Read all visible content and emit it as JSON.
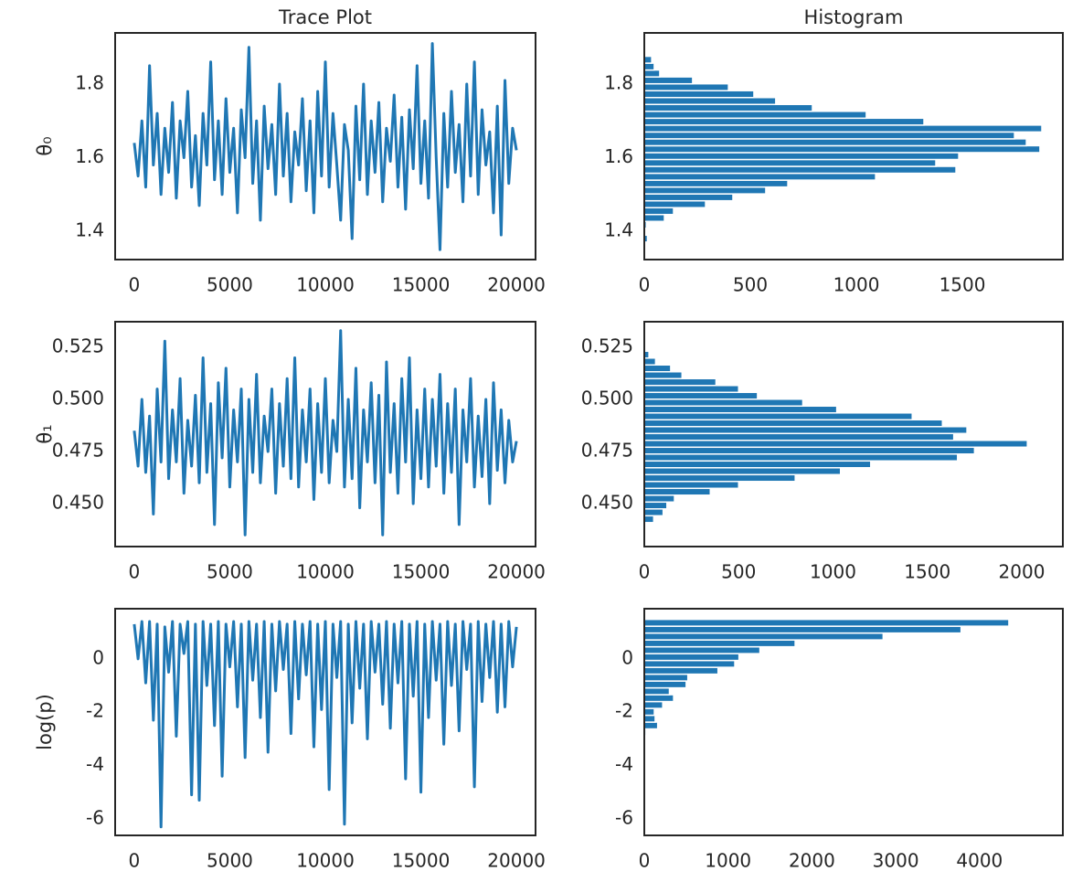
{
  "chart_data": [
    {
      "type": "line",
      "title": "Trace Plot",
      "ylabel": "θ₀",
      "color": "#1f77b4",
      "x": [
        0,
        200,
        400,
        600,
        800,
        1000,
        1200,
        1400,
        1600,
        1800,
        2000,
        2200,
        2400,
        2600,
        2800,
        3000,
        3200,
        3400,
        3600,
        3800,
        4000,
        4200,
        4400,
        4600,
        4800,
        5000,
        5200,
        5400,
        5600,
        5800,
        6000,
        6200,
        6400,
        6600,
        6800,
        7000,
        7200,
        7400,
        7600,
        7800,
        8000,
        8200,
        8400,
        8600,
        8800,
        9000,
        9200,
        9400,
        9600,
        9800,
        10000,
        10200,
        10400,
        10600,
        10800,
        11000,
        11200,
        11400,
        11600,
        11800,
        12000,
        12200,
        12400,
        12600,
        12800,
        13000,
        13200,
        13400,
        13600,
        13800,
        14000,
        14200,
        14400,
        14600,
        14800,
        15000,
        15200,
        15400,
        15600,
        15800,
        16000,
        16200,
        16400,
        16600,
        16800,
        17000,
        17200,
        17400,
        17600,
        17800,
        18000,
        18200,
        18400,
        18600,
        18800,
        19000,
        19200,
        19400,
        19600,
        19800,
        20000
      ],
      "values": [
        1.64,
        1.55,
        1.7,
        1.52,
        1.85,
        1.58,
        1.72,
        1.5,
        1.68,
        1.56,
        1.75,
        1.49,
        1.7,
        1.6,
        1.78,
        1.52,
        1.66,
        1.47,
        1.72,
        1.58,
        1.86,
        1.54,
        1.7,
        1.5,
        1.76,
        1.56,
        1.68,
        1.45,
        1.73,
        1.6,
        1.9,
        1.53,
        1.7,
        1.43,
        1.74,
        1.57,
        1.69,
        1.5,
        1.8,
        1.55,
        1.72,
        1.48,
        1.67,
        1.58,
        1.76,
        1.51,
        1.7,
        1.45,
        1.78,
        1.55,
        1.86,
        1.52,
        1.72,
        1.58,
        1.43,
        1.69,
        1.62,
        1.38,
        1.74,
        1.54,
        1.8,
        1.5,
        1.7,
        1.56,
        1.75,
        1.48,
        1.68,
        1.59,
        1.77,
        1.52,
        1.71,
        1.46,
        1.73,
        1.57,
        1.85,
        1.53,
        1.7,
        1.49,
        1.91,
        1.6,
        1.35,
        1.72,
        1.52,
        1.78,
        1.56,
        1.69,
        1.48,
        1.8,
        1.55,
        1.86,
        1.5,
        1.73,
        1.58,
        1.67,
        1.45,
        1.74,
        1.39,
        1.81,
        1.53,
        1.68,
        1.62
      ],
      "xlim": [
        -1000,
        21000
      ],
      "xticks": [
        0,
        5000,
        10000,
        15000,
        20000
      ],
      "ylim": [
        1.323,
        1.939
      ],
      "yticks": [
        1.4,
        1.6,
        1.8
      ]
    },
    {
      "type": "histogram",
      "title": "Histogram",
      "color": "#1f77b4",
      "bins": [
        1.3706,
        1.3893,
        1.408,
        1.4267,
        1.4454,
        1.4641,
        1.4828,
        1.5015,
        1.5202,
        1.5389,
        1.5576,
        1.5763,
        1.595,
        1.6137,
        1.6324,
        1.6511,
        1.6698,
        1.6885,
        1.7072,
        1.7259,
        1.7446,
        1.7633,
        1.782,
        1.8007,
        1.8194,
        1.8381,
        1.8568,
        1.8755
      ],
      "values": [
        15,
        0,
        10,
        95,
        138,
        289,
        418,
        573,
        677,
        1091,
        1470,
        1375,
        1483,
        1866,
        1802,
        1746,
        1875,
        1319,
        1047,
        793,
        620,
        517,
        397,
        228,
        73,
        47,
        35
      ],
      "xlim": [
        0,
        1974
      ],
      "xticks": [
        0,
        500,
        1000,
        1500
      ],
      "ylim": [
        1.323,
        1.939
      ],
      "yticks": [
        1.4,
        1.6,
        1.8
      ]
    },
    {
      "type": "line",
      "ylabel": "θ₁",
      "color": "#1f77b4",
      "x": [
        0,
        200,
        400,
        600,
        800,
        1000,
        1200,
        1400,
        1600,
        1800,
        2000,
        2200,
        2400,
        2600,
        2800,
        3000,
        3200,
        3400,
        3600,
        3800,
        4000,
        4200,
        4400,
        4600,
        4800,
        5000,
        5200,
        5400,
        5600,
        5800,
        6000,
        6200,
        6400,
        6600,
        6800,
        7000,
        7200,
        7400,
        7600,
        7800,
        8000,
        8200,
        8400,
        8600,
        8800,
        9000,
        9200,
        9400,
        9600,
        9800,
        10000,
        10200,
        10400,
        10600,
        10800,
        11000,
        11200,
        11400,
        11600,
        11800,
        12000,
        12200,
        12400,
        12600,
        12800,
        13000,
        13200,
        13400,
        13600,
        13800,
        14000,
        14200,
        14400,
        14600,
        14800,
        15000,
        15200,
        15400,
        15600,
        15800,
        16000,
        16200,
        16400,
        16600,
        16800,
        17000,
        17200,
        17400,
        17600,
        17800,
        18000,
        18200,
        18400,
        18600,
        18800,
        19000,
        19200,
        19400,
        19600,
        19800,
        20000
      ],
      "values": [
        0.485,
        0.468,
        0.5,
        0.465,
        0.492,
        0.445,
        0.505,
        0.47,
        0.528,
        0.462,
        0.495,
        0.47,
        0.51,
        0.455,
        0.49,
        0.468,
        0.502,
        0.46,
        0.52,
        0.465,
        0.498,
        0.44,
        0.508,
        0.472,
        0.515,
        0.458,
        0.495,
        0.47,
        0.505,
        0.435,
        0.5,
        0.465,
        0.512,
        0.46,
        0.492,
        0.475,
        0.505,
        0.455,
        0.498,
        0.468,
        0.51,
        0.462,
        0.52,
        0.458,
        0.495,
        0.47,
        0.505,
        0.452,
        0.498,
        0.465,
        0.51,
        0.46,
        0.49,
        0.475,
        0.533,
        0.458,
        0.5,
        0.462,
        0.515,
        0.448,
        0.495,
        0.47,
        0.508,
        0.46,
        0.502,
        0.435,
        0.518,
        0.465,
        0.498,
        0.455,
        0.51,
        0.47,
        0.52,
        0.45,
        0.495,
        0.462,
        0.505,
        0.458,
        0.5,
        0.468,
        0.512,
        0.455,
        0.498,
        0.465,
        0.505,
        0.44,
        0.495,
        0.47,
        0.51,
        0.458,
        0.492,
        0.463,
        0.5,
        0.45,
        0.508,
        0.466,
        0.495,
        0.46,
        0.49,
        0.47,
        0.48
      ],
      "xlim": [
        -1000,
        21000
      ],
      "xticks": [
        0,
        5000,
        10000,
        15000,
        20000
      ],
      "ylim": [
        0.4294,
        0.5373
      ],
      "yticks": [
        {
          "value": 0.45,
          "label": "0.450"
        },
        {
          "value": 0.475,
          "label": "0.475"
        },
        {
          "value": 0.5,
          "label": "0.500"
        },
        {
          "value": 0.525,
          "label": "0.525"
        }
      ]
    },
    {
      "type": "histogram",
      "color": "#1f77b4",
      "bins": [
        0.4409,
        0.44419,
        0.44748,
        0.45077,
        0.45406,
        0.45735,
        0.46064,
        0.46393,
        0.46722,
        0.47051,
        0.4738,
        0.47709,
        0.48038,
        0.48367,
        0.48696,
        0.49025,
        0.49354,
        0.49683,
        0.50012,
        0.50341,
        0.5067,
        0.50999,
        0.51328,
        0.51657,
        0.51986,
        0.52315
      ],
      "values": [
        50,
        100,
        120,
        160,
        350,
        500,
        800,
        1040,
        1200,
        1660,
        1750,
        2030,
        1640,
        1710,
        1580,
        1420,
        1020,
        840,
        600,
        500,
        380,
        200,
        140,
        60,
        25
      ],
      "xlim": [
        0,
        2218
      ],
      "xticks": [
        0,
        500,
        1000,
        1500,
        2000
      ],
      "ylim": [
        0.4294,
        0.5373
      ],
      "yticks": [
        {
          "value": 0.45,
          "label": "0.450"
        },
        {
          "value": 0.475,
          "label": "0.475"
        },
        {
          "value": 0.5,
          "label": "0.500"
        },
        {
          "value": 0.525,
          "label": "0.525"
        }
      ]
    },
    {
      "type": "line",
      "ylabel": "log(p)",
      "color": "#1f77b4",
      "x": [
        0,
        200,
        400,
        600,
        800,
        1000,
        1200,
        1400,
        1600,
        1800,
        2000,
        2200,
        2400,
        2600,
        2800,
        3000,
        3200,
        3400,
        3600,
        3800,
        4000,
        4200,
        4400,
        4600,
        4800,
        5000,
        5200,
        5400,
        5600,
        5800,
        6000,
        6200,
        6400,
        6600,
        6800,
        7000,
        7200,
        7400,
        7600,
        7800,
        8000,
        8200,
        8400,
        8600,
        8800,
        9000,
        9200,
        9400,
        9600,
        9800,
        10000,
        10200,
        10400,
        10600,
        10800,
        11000,
        11200,
        11400,
        11600,
        11800,
        12000,
        12200,
        12400,
        12600,
        12800,
        13000,
        13200,
        13400,
        13600,
        13800,
        14000,
        14200,
        14400,
        14600,
        14800,
        15000,
        15200,
        15400,
        15600,
        15800,
        16000,
        16200,
        16400,
        16600,
        16800,
        17000,
        17200,
        17400,
        17600,
        17800,
        18000,
        18200,
        18400,
        18600,
        18800,
        19000,
        19200,
        19400,
        19600,
        19800,
        20000
      ],
      "values": [
        1.3,
        0.0,
        1.4,
        -0.9,
        1.4,
        -2.3,
        1.3,
        -6.3,
        1.2,
        -0.5,
        1.4,
        -2.9,
        1.3,
        0.2,
        1.4,
        -5.1,
        1.3,
        -5.3,
        1.4,
        -1.0,
        1.3,
        -2.5,
        1.4,
        -4.4,
        1.3,
        -0.3,
        1.4,
        -1.8,
        1.3,
        -3.7,
        1.4,
        -0.8,
        1.3,
        -2.2,
        1.4,
        -3.5,
        1.3,
        -1.2,
        1.4,
        -0.4,
        1.3,
        -2.8,
        1.4,
        -1.5,
        1.3,
        -0.6,
        1.4,
        -3.3,
        1.3,
        -1.9,
        1.4,
        -4.9,
        1.3,
        -0.7,
        1.4,
        -6.2,
        1.3,
        -2.4,
        1.4,
        -1.1,
        1.3,
        -3.0,
        1.4,
        -0.5,
        1.3,
        -1.7,
        1.4,
        -2.6,
        1.3,
        -0.9,
        1.4,
        -4.5,
        1.3,
        -1.4,
        1.4,
        -5.0,
        1.3,
        -2.2,
        1.4,
        -0.8,
        1.3,
        -3.2,
        1.4,
        -1.0,
        1.3,
        -2.7,
        1.4,
        -0.4,
        1.3,
        -4.8,
        1.4,
        -1.6,
        1.3,
        -0.7,
        1.4,
        -2.0,
        1.3,
        -1.8,
        1.4,
        -0.3,
        1.2
      ],
      "xlim": [
        -1000,
        21000
      ],
      "xticks": [
        0,
        5000,
        10000,
        15000,
        20000
      ],
      "ylim": [
        -6.62,
        1.88
      ],
      "yticks": [
        -6,
        -4,
        -2,
        0
      ]
    },
    {
      "type": "histogram",
      "color": "#1f77b4",
      "bins": [
        -3.142,
        -2.885,
        -2.628,
        -2.372,
        -2.115,
        -1.858,
        -1.601,
        -1.344,
        -1.088,
        -0.831,
        -0.574,
        -0.317,
        -0.06,
        0.196,
        0.453,
        0.71,
        0.967,
        1.224,
        1.48
      ],
      "values": [
        10,
        20,
        160,
        130,
        120,
        220,
        350,
        300,
        500,
        520,
        880,
        1080,
        1130,
        1380,
        1800,
        2850,
        3780,
        4350
      ],
      "xlim": [
        0,
        4994
      ],
      "xticks": [
        0,
        1000,
        2000,
        3000,
        4000
      ],
      "ylim": [
        -6.62,
        1.88
      ],
      "yticks": [
        -6,
        -4,
        -2,
        0
      ]
    }
  ]
}
